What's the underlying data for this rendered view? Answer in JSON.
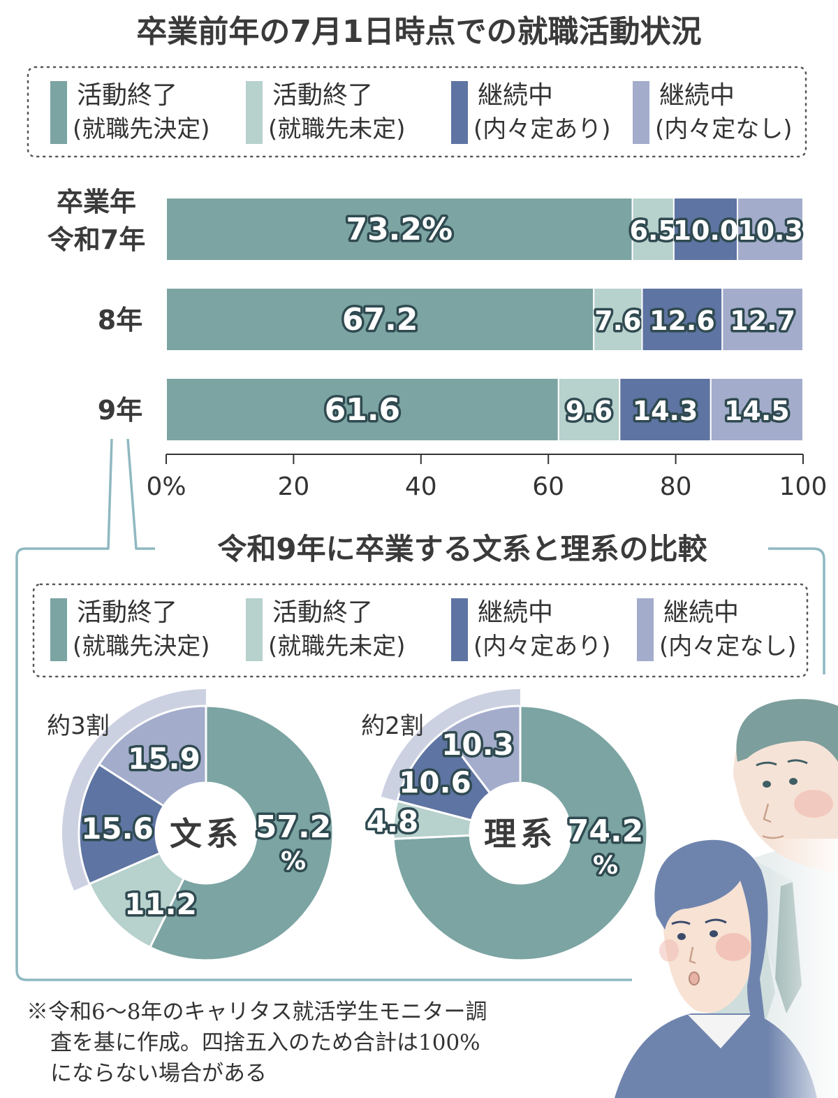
{
  "colors": {
    "done_decided": "#7ba4a2",
    "done_undecided": "#b7d1cd",
    "cont_offer": "#5e74a2",
    "cont_no_offer": "#a3accb",
    "text_dark": "#3a3a3a",
    "callout_line": "#8fb8c0"
  },
  "legend_items": [
    {
      "line1": "活動終了",
      "line2": "(就職先決定)"
    },
    {
      "line1": "活動終了",
      "line2": "(就職先未定)"
    },
    {
      "line1": "継続中",
      "line2": "(内々定あり)"
    },
    {
      "line1": "継続中",
      "line2": "(内々定なし)"
    }
  ],
  "chart_data": [
    {
      "type": "bar",
      "orientation": "horizontal-stacked",
      "title": "卒業前年の7月1日時点での就職活動状況",
      "row_header": "卒業年",
      "categories": [
        "令和7年",
        "8年",
        "9年"
      ],
      "series": [
        {
          "name": "活動終了(就職先決定)",
          "values": [
            73.2,
            67.2,
            61.6
          ],
          "labels": [
            "73.2%",
            "67.2",
            "61.6"
          ]
        },
        {
          "name": "活動終了(就職先未定)",
          "values": [
            6.5,
            7.6,
            9.6
          ],
          "labels": [
            "6.5",
            "7.6",
            "9.6"
          ]
        },
        {
          "name": "継続中(内々定あり)",
          "values": [
            10.0,
            12.6,
            14.3
          ],
          "labels": [
            "10.0",
            "12.6",
            "14.3"
          ]
        },
        {
          "name": "継続中(内々定なし)",
          "values": [
            10.3,
            12.7,
            14.5
          ],
          "labels": [
            "10.3",
            "12.7",
            "14.5"
          ]
        }
      ],
      "xlim": [
        0,
        100
      ],
      "x_ticks": [
        "0%",
        "20",
        "40",
        "60",
        "80",
        "100"
      ],
      "x_tick_values": [
        0,
        20,
        40,
        60,
        80,
        100
      ]
    },
    {
      "type": "pie",
      "style": "donut",
      "title": "令和9年に卒業する文系と理系の比較",
      "charts": [
        {
          "center_label": "文系",
          "values": [
            57.2,
            11.2,
            15.6,
            15.9
          ],
          "labels": [
            "57.2",
            "11.2",
            "15.6",
            "15.9"
          ],
          "percent_sign": "%",
          "bracket_label": "約3割"
        },
        {
          "center_label": "理系",
          "values": [
            74.2,
            4.8,
            10.6,
            10.3
          ],
          "labels": [
            "74.2",
            "4.8",
            "10.6",
            "10.3"
          ],
          "percent_sign": "%",
          "bracket_label": "約2割"
        }
      ]
    }
  ],
  "footnote": {
    "lines": [
      "※令和6～8年のキャリタス就活学生モニター調",
      "査を基に作成。四捨五入のため合計は100%",
      "にならない場合がある"
    ]
  }
}
